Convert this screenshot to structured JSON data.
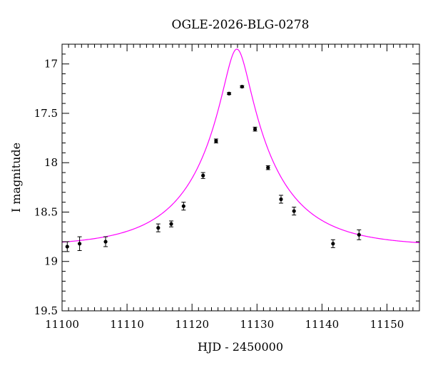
{
  "chart_data": {
    "type": "scatter",
    "title": "OGLE-2026-BLG-0278",
    "xlabel": "HJD - 2450000",
    "ylabel": "I magnitude",
    "xlim": [
      11100,
      11155
    ],
    "ylim": [
      16.8,
      19.5
    ],
    "y_inverted": true,
    "x_ticks": [
      11100,
      11110,
      11120,
      11130,
      11140,
      11150
    ],
    "y_ticks": [
      17,
      17.5,
      18,
      18.5,
      19,
      19.5
    ],
    "x_tick_labels": [
      "11100",
      "11110",
      "11120",
      "11130",
      "11140",
      "11150"
    ],
    "y_tick_labels": [
      "17",
      "17.5",
      "18",
      "18.5",
      "19",
      "19.5"
    ],
    "grid": false,
    "series": [
      {
        "kind": "points_with_error_bars",
        "color": "#000000",
        "points": [
          {
            "x": 11100.8,
            "y": 18.85,
            "err": 0.05
          },
          {
            "x": 11102.7,
            "y": 18.82,
            "err": 0.07
          },
          {
            "x": 11106.7,
            "y": 18.8,
            "err": 0.05
          },
          {
            "x": 11114.8,
            "y": 18.66,
            "err": 0.04
          },
          {
            "x": 11116.8,
            "y": 18.62,
            "err": 0.03
          },
          {
            "x": 11118.7,
            "y": 18.44,
            "err": 0.04
          },
          {
            "x": 11121.7,
            "y": 18.13,
            "err": 0.03
          },
          {
            "x": 11123.7,
            "y": 17.78,
            "err": 0.02
          },
          {
            "x": 11125.7,
            "y": 17.3,
            "err": 0.01
          },
          {
            "x": 11127.7,
            "y": 17.23,
            "err": 0.01
          },
          {
            "x": 11129.7,
            "y": 17.66,
            "err": 0.02
          },
          {
            "x": 11131.7,
            "y": 18.05,
            "err": 0.02
          },
          {
            "x": 11133.7,
            "y": 18.37,
            "err": 0.04
          },
          {
            "x": 11135.7,
            "y": 18.49,
            "err": 0.04
          },
          {
            "x": 11141.7,
            "y": 18.82,
            "err": 0.04
          },
          {
            "x": 11145.7,
            "y": 18.73,
            "err": 0.05
          }
        ]
      },
      {
        "kind": "model_curve",
        "color": "#ff00ff",
        "model": {
          "t0": 11126.9,
          "tE": 12,
          "u0": 0.16,
          "baseline_mag": 18.85
        }
      }
    ]
  }
}
